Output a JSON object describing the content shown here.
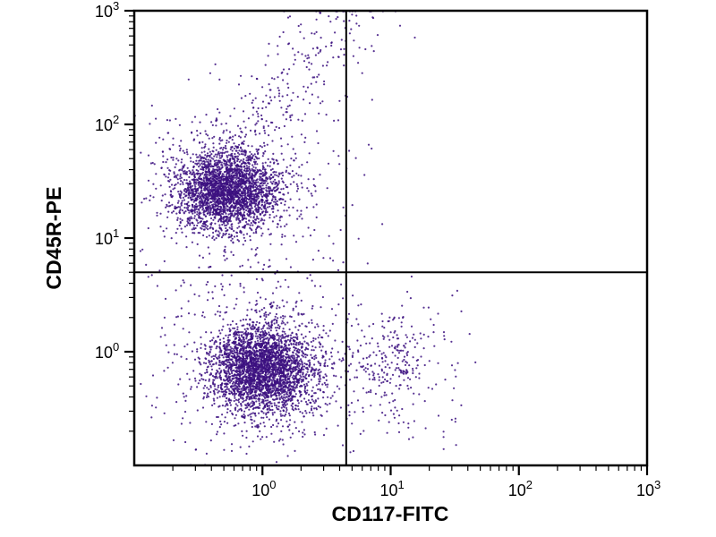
{
  "chart_data": {
    "type": "scatter",
    "title": "",
    "xlabel": "CD117-FITC",
    "ylabel": "CD45R-PE",
    "x_scale": "log10",
    "y_scale": "log10",
    "x_log_min": -1,
    "x_log_max": 3,
    "y_log_min": -1,
    "y_log_max": 3,
    "x_tick_exponents": [
      0,
      1,
      2,
      3
    ],
    "y_tick_exponents": [
      0,
      1,
      2,
      3
    ],
    "grid": false,
    "legend": false,
    "dot_color": "#3c1080",
    "axis_color": "#000000",
    "quadrant_gate": {
      "x_value": 4.5,
      "y_value": 5
    },
    "seed": 42,
    "clusters": [
      {
        "name": "CD45R-positive-main",
        "n": 2600,
        "cx": -0.28,
        "cy": 1.42,
        "sx": 0.2,
        "sy": 0.17
      },
      {
        "name": "CD45R-positive-diffuse",
        "n": 450,
        "cx": -0.25,
        "cy": 1.45,
        "sx": 0.45,
        "sy": 0.4
      },
      {
        "name": "CD45R-negative-main",
        "n": 2900,
        "cx": 0.0,
        "cy": -0.15,
        "sx": 0.2,
        "sy": 0.2
      },
      {
        "name": "CD45R-negative-diffuse",
        "n": 550,
        "cx": 0.0,
        "cy": -0.12,
        "sx": 0.42,
        "sy": 0.4
      },
      {
        "name": "CD117-positive-dim",
        "n": 170,
        "cx": 1.02,
        "cy": -0.1,
        "sx": 0.17,
        "sy": 0.2
      },
      {
        "name": "CD117-positive-diffuse",
        "n": 60,
        "cx": 1.0,
        "cy": -0.05,
        "sx": 0.35,
        "sy": 0.4
      }
    ],
    "streak": {
      "n": 260,
      "x0": -0.35,
      "y0": 1.6,
      "x1": 0.75,
      "y1": 3.05,
      "spread": 0.18
    },
    "sparse": {
      "n": 50,
      "x_min": 0.65,
      "x_max": 1.6,
      "y_min": -0.9,
      "y_max": 0.6
    }
  }
}
